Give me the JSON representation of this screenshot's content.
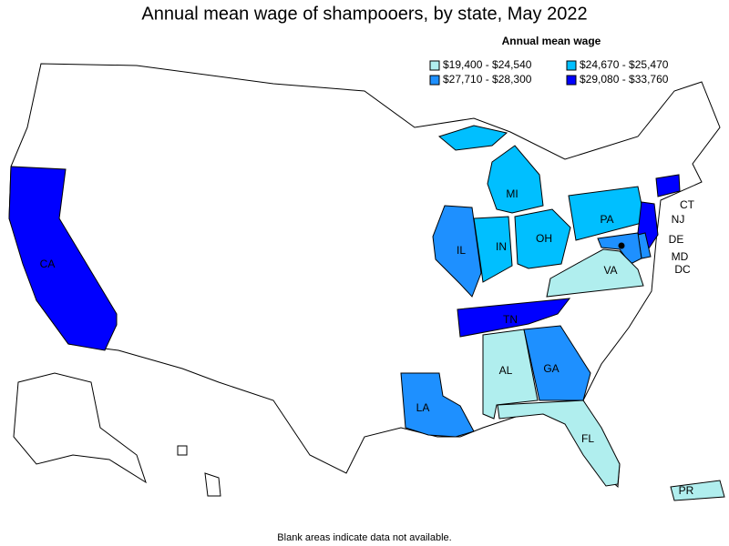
{
  "title": "Annual mean wage of shampooers, by state, May 2022",
  "legend": {
    "title": "Annual mean wage",
    "items": [
      {
        "label": "$19,400 - $24,540",
        "color": "#b0eeee"
      },
      {
        "label": "$24,670 - $25,470",
        "color": "#00bfff"
      },
      {
        "label": "$27,710 - $28,300",
        "color": "#1e90ff"
      },
      {
        "label": "$29,080 - $33,760",
        "color": "#0000ff"
      }
    ]
  },
  "states": [
    {
      "label": "CA",
      "color": "#0000ff"
    },
    {
      "label": "IL",
      "color": "#1e90ff"
    },
    {
      "label": "IN",
      "color": "#00bfff"
    },
    {
      "label": "OH",
      "color": "#00bfff"
    },
    {
      "label": "MI",
      "color": "#00bfff"
    },
    {
      "label": "PA",
      "color": "#00bfff"
    },
    {
      "label": "NJ",
      "color": "#0000ff"
    },
    {
      "label": "CT",
      "color": "#0000ff"
    },
    {
      "label": "DE",
      "color": "#1e90ff"
    },
    {
      "label": "MD",
      "color": "#1e90ff"
    },
    {
      "label": "DC",
      "color": "#000000"
    },
    {
      "label": "VA",
      "color": "#b0eeee"
    },
    {
      "label": "TN",
      "color": "#0000ff"
    },
    {
      "label": "AL",
      "color": "#b0eeee"
    },
    {
      "label": "GA",
      "color": "#1e90ff"
    },
    {
      "label": "FL",
      "color": "#b0eeee"
    },
    {
      "label": "LA",
      "color": "#1e90ff"
    },
    {
      "label": "PR",
      "color": "#b0eeee"
    }
  ],
  "footnote": "Blank areas indicate data not available."
}
